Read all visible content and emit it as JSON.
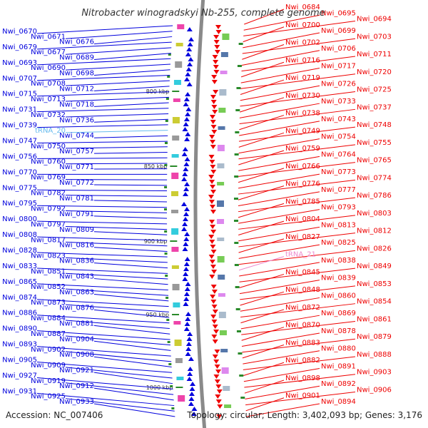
{
  "title": "Nitrobacter winogradskyi Nb-255, complete genome",
  "accession_text": "Accession: NC_007406",
  "topology_text": "Topology: circular; Length: 3,402,093 bp; Genes: 3,176",
  "colors": {
    "minus_strand": "#0000dd",
    "plus_strand": "#ee0000",
    "trna_minus": "#66bbee",
    "trna_plus": "#ee88cc",
    "backbone": "#8a8a8a",
    "tick_mark": "#2a8a2a"
  },
  "scale_ticks": [
    "800 kbp",
    "850 kbp",
    "900 kbp",
    "950 kbp",
    "1000 kbp"
  ],
  "left_labels": [
    "Nwi_0670",
    "Nwi_0671",
    "Nwi_0676",
    "Nwi_0679",
    "Nwi_0677",
    "Nwi_0689",
    "Nwi_0693",
    "Nwi_0690",
    "Nwi_0698",
    "Nwi_0707",
    "Nwi_0708",
    "Nwi_0712",
    "Nwi_0715",
    "Nwi_0713",
    "Nwi_0718",
    "Nwi_0731",
    "Nwi_0732",
    "Nwi_0736",
    "Nwi_0739",
    "tRNA_20",
    "Nwi_0744",
    "Nwi_0747",
    "Nwi_0750",
    "Nwi_0757",
    "Nwi_0756",
    "Nwi_0760",
    "Nwi_0771",
    "Nwi_0770",
    "Nwi_0769",
    "Nwi_0772",
    "Nwi_0775",
    "Nwi_0782",
    "Nwi_0781",
    "Nwi_0795",
    "Nwi_0792",
    "Nwi_0791",
    "Nwi_0800",
    "Nwi_0797",
    "Nwi_0809",
    "Nwi_0808",
    "Nwi_0817",
    "Nwi_0816",
    "Nwi_0828",
    "Nwi_0823",
    "Nwi_0836",
    "Nwi_0833",
    "Nwi_0851",
    "Nwi_0843",
    "Nwi_0865",
    "Nwi_0852",
    "Nwi_0863",
    "Nwi_0874",
    "Nwi_0873",
    "Nwi_0876",
    "Nwi_0886",
    "Nwi_0884",
    "Nwi_0881",
    "Nwi_0890",
    "Nwi_0887",
    "Nwi_0904",
    "Nwi_0893",
    "Nwi_0902",
    "Nwi_0908",
    "Nwi_0905",
    "Nwi_0909",
    "Nwi_0921",
    "Nwi_0927",
    "Nwi_0919",
    "Nwi_0912",
    "Nwi_0931",
    "Nwi_0925",
    "Nwi_0933"
  ],
  "right_labels": [
    "Nwi_0684",
    "Nwi_0695",
    "Nwi_0694",
    "Nwi_0700",
    "Nwi_0699",
    "Nwi_0703",
    "Nwi_0702",
    "Nwi_0706",
    "Nwi_0711",
    "Nwi_0716",
    "Nwi_0717",
    "Nwi_0720",
    "Nwi_0719",
    "Nwi_0726",
    "Nwi_0725",
    "Nwi_0730",
    "Nwi_0733",
    "Nwi_0737",
    "Nwi_0738",
    "Nwi_0743",
    "Nwi_0748",
    "Nwi_0749",
    "Nwi_0754",
    "Nwi_0755",
    "Nwi_0759",
    "Nwi_0764",
    "Nwi_0765",
    "Nwi_0766",
    "Nwi_0773",
    "Nwi_0774",
    "Nwi_0776",
    "Nwi_0777",
    "Nwi_0786",
    "Nwi_0785",
    "Nwi_0793",
    "Nwi_0803",
    "Nwi_0804",
    "Nwi_0813",
    "Nwi_0812",
    "Nwi_0827",
    "Nwi_0825",
    "Nwi_0826",
    "tRNA_21",
    "Nwi_0838",
    "Nwi_0849",
    "Nwi_0845",
    "Nwi_0839",
    "Nwi_0853",
    "Nwi_0848",
    "Nwi_0860",
    "Nwi_0854",
    "Nwi_0872",
    "Nwi_0869",
    "Nwi_0861",
    "Nwi_0870",
    "Nwi_0878",
    "Nwi_0879",
    "Nwi_0883",
    "Nwi_0880",
    "Nwi_0888",
    "Nwi_0882",
    "Nwi_0891",
    "Nwi_0903",
    "Nwi_0898",
    "Nwi_0892",
    "Nwi_0906",
    "Nwi_0901",
    "Nwi_0894"
  ]
}
